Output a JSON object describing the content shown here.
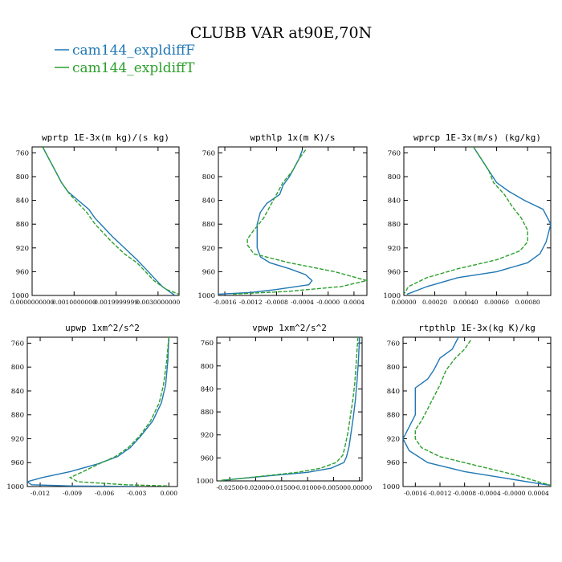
{
  "figure": {
    "title": "CLUBB VAR at90E,70N",
    "legend": [
      {
        "label": "cam144_expldiffF",
        "color": "#1f77b4"
      },
      {
        "label": "cam144_expldiffT",
        "color": "#2ca02c"
      }
    ]
  },
  "chart_data": [
    {
      "type": "line",
      "title": "wprtp  1E-3x(m kg)/(s kg)",
      "xlim": [
        0.0,
        0.0035
      ],
      "ylim": [
        1000,
        750
      ],
      "xticks": [
        0.0,
        0.001,
        0.002,
        0.003
      ],
      "xtick_labels": [
        "0.0000000000",
        "0.0010000000",
        "0.0019999999",
        "0.0030000000"
      ],
      "yticks": [
        760,
        800,
        840,
        880,
        920,
        960,
        1000
      ],
      "series": [
        {
          "name": "cam144_expldiffF",
          "color": "#1f77b4",
          "dashed": false,
          "points": [
            [
              0.00025,
              750
            ],
            [
              0.0004,
              770
            ],
            [
              0.00055,
              790
            ],
            [
              0.0007,
              810
            ],
            [
              0.00085,
              825
            ],
            [
              0.0011,
              840
            ],
            [
              0.00135,
              855
            ],
            [
              0.0015,
              870
            ],
            [
              0.0017,
              885
            ],
            [
              0.0019,
              900
            ],
            [
              0.0022,
              920
            ],
            [
              0.0025,
              940
            ],
            [
              0.0027,
              955
            ],
            [
              0.0029,
              970
            ],
            [
              0.0031,
              985
            ],
            [
              0.0034,
              1000
            ]
          ]
        },
        {
          "name": "cam144_expldiffT",
          "color": "#2ca02c",
          "dashed": true,
          "points": [
            [
              0.00025,
              750
            ],
            [
              0.0004,
              770
            ],
            [
              0.00055,
              790
            ],
            [
              0.0007,
              810
            ],
            [
              0.0009,
              830
            ],
            [
              0.0011,
              845
            ],
            [
              0.0013,
              860
            ],
            [
              0.0015,
              880
            ],
            [
              0.0017,
              895
            ],
            [
              0.0019,
              910
            ],
            [
              0.0022,
              930
            ],
            [
              0.0025,
              945
            ],
            [
              0.0027,
              960
            ],
            [
              0.0029,
              975
            ],
            [
              0.0032,
              990
            ],
            [
              0.0035,
              998
            ]
          ]
        }
      ]
    },
    {
      "type": "line",
      "title": "wpthlp  1x(m K)/s",
      "xlim": [
        -0.0017,
        0.0006
      ],
      "ylim": [
        1000,
        750
      ],
      "xticks": [
        -0.0016,
        -0.0012,
        -0.0008,
        -0.0004,
        0.0,
        0.0004
      ],
      "xtick_labels": [
        "-0.0016",
        "-0.0012",
        "-0.0008",
        "-0.0004",
        "-0.0000",
        "0.0004"
      ],
      "yticks": [
        760,
        800,
        840,
        880,
        920,
        960,
        1000
      ],
      "series": [
        {
          "name": "cam144_expldiffF",
          "color": "#1f77b4",
          "dashed": false,
          "points": [
            [
              -0.0004,
              755
            ],
            [
              -0.00045,
              770
            ],
            [
              -0.0006,
              800
            ],
            [
              -0.0007,
              815
            ],
            [
              -0.00075,
              830
            ],
            [
              -0.00095,
              845
            ],
            [
              -0.00105,
              860
            ],
            [
              -0.0011,
              880
            ],
            [
              -0.0011,
              900
            ],
            [
              -0.0011,
              920
            ],
            [
              -0.00105,
              935
            ],
            [
              -0.0009,
              945
            ],
            [
              -0.0006,
              955
            ],
            [
              -0.00035,
              965
            ],
            [
              -0.00025,
              975
            ],
            [
              -0.0003,
              982
            ],
            [
              -0.0008,
              990
            ],
            [
              -0.0012,
              995
            ],
            [
              -0.0017,
              998
            ]
          ]
        },
        {
          "name": "cam144_expldiffT",
          "color": "#2ca02c",
          "dashed": true,
          "points": [
            [
              -0.00035,
              755
            ],
            [
              -0.00045,
              770
            ],
            [
              -0.00055,
              790
            ],
            [
              -0.0007,
              810
            ],
            [
              -0.0008,
              830
            ],
            [
              -0.0009,
              850
            ],
            [
              -0.001,
              870
            ],
            [
              -0.00115,
              890
            ],
            [
              -0.00125,
              905
            ],
            [
              -0.00125,
              915
            ],
            [
              -0.00115,
              930
            ],
            [
              -0.0006,
              945
            ],
            [
              0.0001,
              960
            ],
            [
              0.0006,
              975
            ],
            [
              0.0002,
              985
            ],
            [
              -0.0006,
              993
            ],
            [
              -0.0015,
              998
            ]
          ]
        }
      ]
    },
    {
      "type": "line",
      "title": "wprcp  1E-3x(m/s) (kg/kg)",
      "xlim": [
        0.0,
        0.00095
      ],
      "ylim": [
        1000,
        750
      ],
      "xticks": [
        0.0,
        0.0002,
        0.0004,
        0.0006,
        0.0008
      ],
      "xtick_labels": [
        "0.00000",
        "0.00020",
        "0.00040",
        "0.00060",
        "0.00080"
      ],
      "yticks": [
        760,
        800,
        840,
        880,
        920,
        960,
        1000
      ],
      "series": [
        {
          "name": "cam144_expldiffF",
          "color": "#1f77b4",
          "dashed": false,
          "points": [
            [
              0.00045,
              750
            ],
            [
              0.0005,
              770
            ],
            [
              0.00055,
              790
            ],
            [
              0.0006,
              810
            ],
            [
              0.00068,
              825
            ],
            [
              0.00078,
              840
            ],
            [
              0.0009,
              855
            ],
            [
              0.00095,
              880
            ],
            [
              0.00092,
              910
            ],
            [
              0.00088,
              930
            ],
            [
              0.0008,
              945
            ],
            [
              0.0006,
              960
            ],
            [
              0.00035,
              970
            ],
            [
              0.00015,
              985
            ],
            [
              2e-05,
              998
            ]
          ]
        },
        {
          "name": "cam144_expldiffT",
          "color": "#2ca02c",
          "dashed": true,
          "points": [
            [
              0.00045,
              750
            ],
            [
              0.0005,
              770
            ],
            [
              0.00055,
              790
            ],
            [
              0.00058,
              810
            ],
            [
              0.00065,
              830
            ],
            [
              0.0007,
              850
            ],
            [
              0.00076,
              870
            ],
            [
              0.0008,
              890
            ],
            [
              0.0008,
              910
            ],
            [
              0.00075,
              925
            ],
            [
              0.0006,
              940
            ],
            [
              0.00035,
              955
            ],
            [
              0.00015,
              970
            ],
            [
              3e-05,
              985
            ],
            [
              0.0,
              998
            ]
          ]
        }
      ]
    },
    {
      "type": "line",
      "title": "upwp  1xm^2/s^2",
      "xlim": [
        -0.0132,
        0.0008
      ],
      "ylim": [
        1000,
        750
      ],
      "xticks": [
        -0.012,
        -0.009,
        -0.006,
        -0.003,
        0.0
      ],
      "xtick_labels": [
        "-0.012",
        "-0.009",
        "-0.006",
        "-0.003",
        "0.000"
      ],
      "yticks": [
        760,
        800,
        840,
        880,
        920,
        960,
        1000
      ],
      "series": [
        {
          "name": "cam144_expldiffF",
          "color": "#1f77b4",
          "dashed": false,
          "points": [
            [
              0.0,
              750
            ],
            [
              -0.0001,
              790
            ],
            [
              -0.0003,
              830
            ],
            [
              -0.0007,
              860
            ],
            [
              -0.0015,
              890
            ],
            [
              -0.0026,
              915
            ],
            [
              -0.0036,
              935
            ],
            [
              -0.0048,
              950
            ],
            [
              -0.0066,
              962
            ],
            [
              -0.0092,
              975
            ],
            [
              -0.0118,
              985
            ],
            [
              -0.0132,
              992
            ],
            [
              -0.0128,
              997
            ],
            [
              -0.009,
              999
            ],
            [
              -0.003,
              1000
            ]
          ]
        },
        {
          "name": "cam144_expldiffT",
          "color": "#2ca02c",
          "dashed": true,
          "points": [
            [
              0.0,
              750
            ],
            [
              -0.0002,
              790
            ],
            [
              -0.0005,
              830
            ],
            [
              -0.0009,
              860
            ],
            [
              -0.0017,
              890
            ],
            [
              -0.0027,
              915
            ],
            [
              -0.0038,
              935
            ],
            [
              -0.005,
              950
            ],
            [
              -0.0065,
              962
            ],
            [
              -0.008,
              975
            ],
            [
              -0.0092,
              985
            ],
            [
              -0.0085,
              992
            ],
            [
              -0.004,
              997
            ],
            [
              0.0,
              999
            ]
          ]
        }
      ]
    },
    {
      "type": "line",
      "title": "vpwp  1xm^2/s^2",
      "xlim": [
        -0.0275,
        0.0005
      ],
      "ylim": [
        1000,
        750
      ],
      "xticks": [
        -0.025,
        -0.02,
        -0.015,
        -0.01,
        -0.005,
        0.0
      ],
      "xtick_labels": [
        "-0.02500",
        "-0.02000",
        "-0.01500",
        "-0.01000",
        "-0.00500",
        "0.00000"
      ],
      "yticks": [
        760,
        800,
        840,
        880,
        920,
        960,
        1000
      ],
      "series": [
        {
          "name": "cam144_expldiffF",
          "color": "#1f77b4",
          "dashed": false,
          "points": [
            [
              0.0,
              750
            ],
            [
              -0.0002,
              790
            ],
            [
              -0.0005,
              830
            ],
            [
              -0.0008,
              860
            ],
            [
              -0.0012,
              890
            ],
            [
              -0.0016,
              915
            ],
            [
              -0.002,
              940
            ],
            [
              -0.0025,
              958
            ],
            [
              -0.003,
              968
            ],
            [
              -0.0055,
              978
            ],
            [
              -0.01,
              985
            ],
            [
              -0.016,
              990
            ],
            [
              -0.022,
              995
            ],
            [
              -0.0265,
              999
            ]
          ]
        },
        {
          "name": "cam144_expldiffT",
          "color": "#2ca02c",
          "dashed": true,
          "points": [
            [
              -0.0003,
              750
            ],
            [
              -0.0006,
              790
            ],
            [
              -0.0009,
              830
            ],
            [
              -0.0013,
              860
            ],
            [
              -0.0018,
              890
            ],
            [
              -0.0022,
              915
            ],
            [
              -0.0028,
              940
            ],
            [
              -0.0032,
              955
            ],
            [
              -0.0045,
              968
            ],
            [
              -0.0075,
              978
            ],
            [
              -0.012,
              985
            ],
            [
              -0.018,
              991
            ],
            [
              -0.023,
              996
            ],
            [
              -0.0268,
              999
            ]
          ]
        }
      ]
    },
    {
      "type": "line",
      "title": "rtpthlp  1E-3x(kg K)/kg",
      "xlim": [
        -0.0018,
        0.0006
      ],
      "ylim": [
        1000,
        750
      ],
      "xticks": [
        -0.0016,
        -0.0012,
        -0.0008,
        -0.0004,
        0.0,
        0.0004
      ],
      "xtick_labels": [
        "-0.0016",
        "-0.0012",
        "-0.0008",
        "-0.0004",
        "-0.0000",
        "0.0004"
      ],
      "yticks": [
        760,
        800,
        840,
        880,
        920,
        960,
        1000
      ],
      "series": [
        {
          "name": "cam144_expldiffF",
          "color": "#1f77b4",
          "dashed": false,
          "points": [
            [
              -0.0009,
              750
            ],
            [
              -0.001,
              770
            ],
            [
              -0.0012,
              785
            ],
            [
              -0.0013,
              805
            ],
            [
              -0.0014,
              820
            ],
            [
              -0.0016,
              835
            ],
            [
              -0.0016,
              860
            ],
            [
              -0.0016,
              880
            ],
            [
              -0.0017,
              900
            ],
            [
              -0.0018,
              920
            ],
            [
              -0.0017,
              940
            ],
            [
              -0.0014,
              960
            ],
            [
              -0.0008,
              975
            ],
            [
              -0.0002,
              985
            ],
            [
              0.0004,
              995
            ],
            [
              0.0006,
              998
            ]
          ]
        },
        {
          "name": "cam144_expldiffT",
          "color": "#2ca02c",
          "dashed": true,
          "points": [
            [
              -0.0007,
              755
            ],
            [
              -0.0008,
              770
            ],
            [
              -0.00095,
              785
            ],
            [
              -0.0011,
              805
            ],
            [
              -0.0012,
              830
            ],
            [
              -0.0013,
              850
            ],
            [
              -0.0014,
              870
            ],
            [
              -0.0015,
              890
            ],
            [
              -0.0016,
              905
            ],
            [
              -0.0016,
              920
            ],
            [
              -0.0015,
              935
            ],
            [
              -0.0012,
              950
            ],
            [
              -0.0006,
              965
            ],
            [
              0.0,
              980
            ],
            [
              0.0005,
              995
            ],
            [
              0.0006,
              998
            ]
          ]
        }
      ]
    }
  ]
}
